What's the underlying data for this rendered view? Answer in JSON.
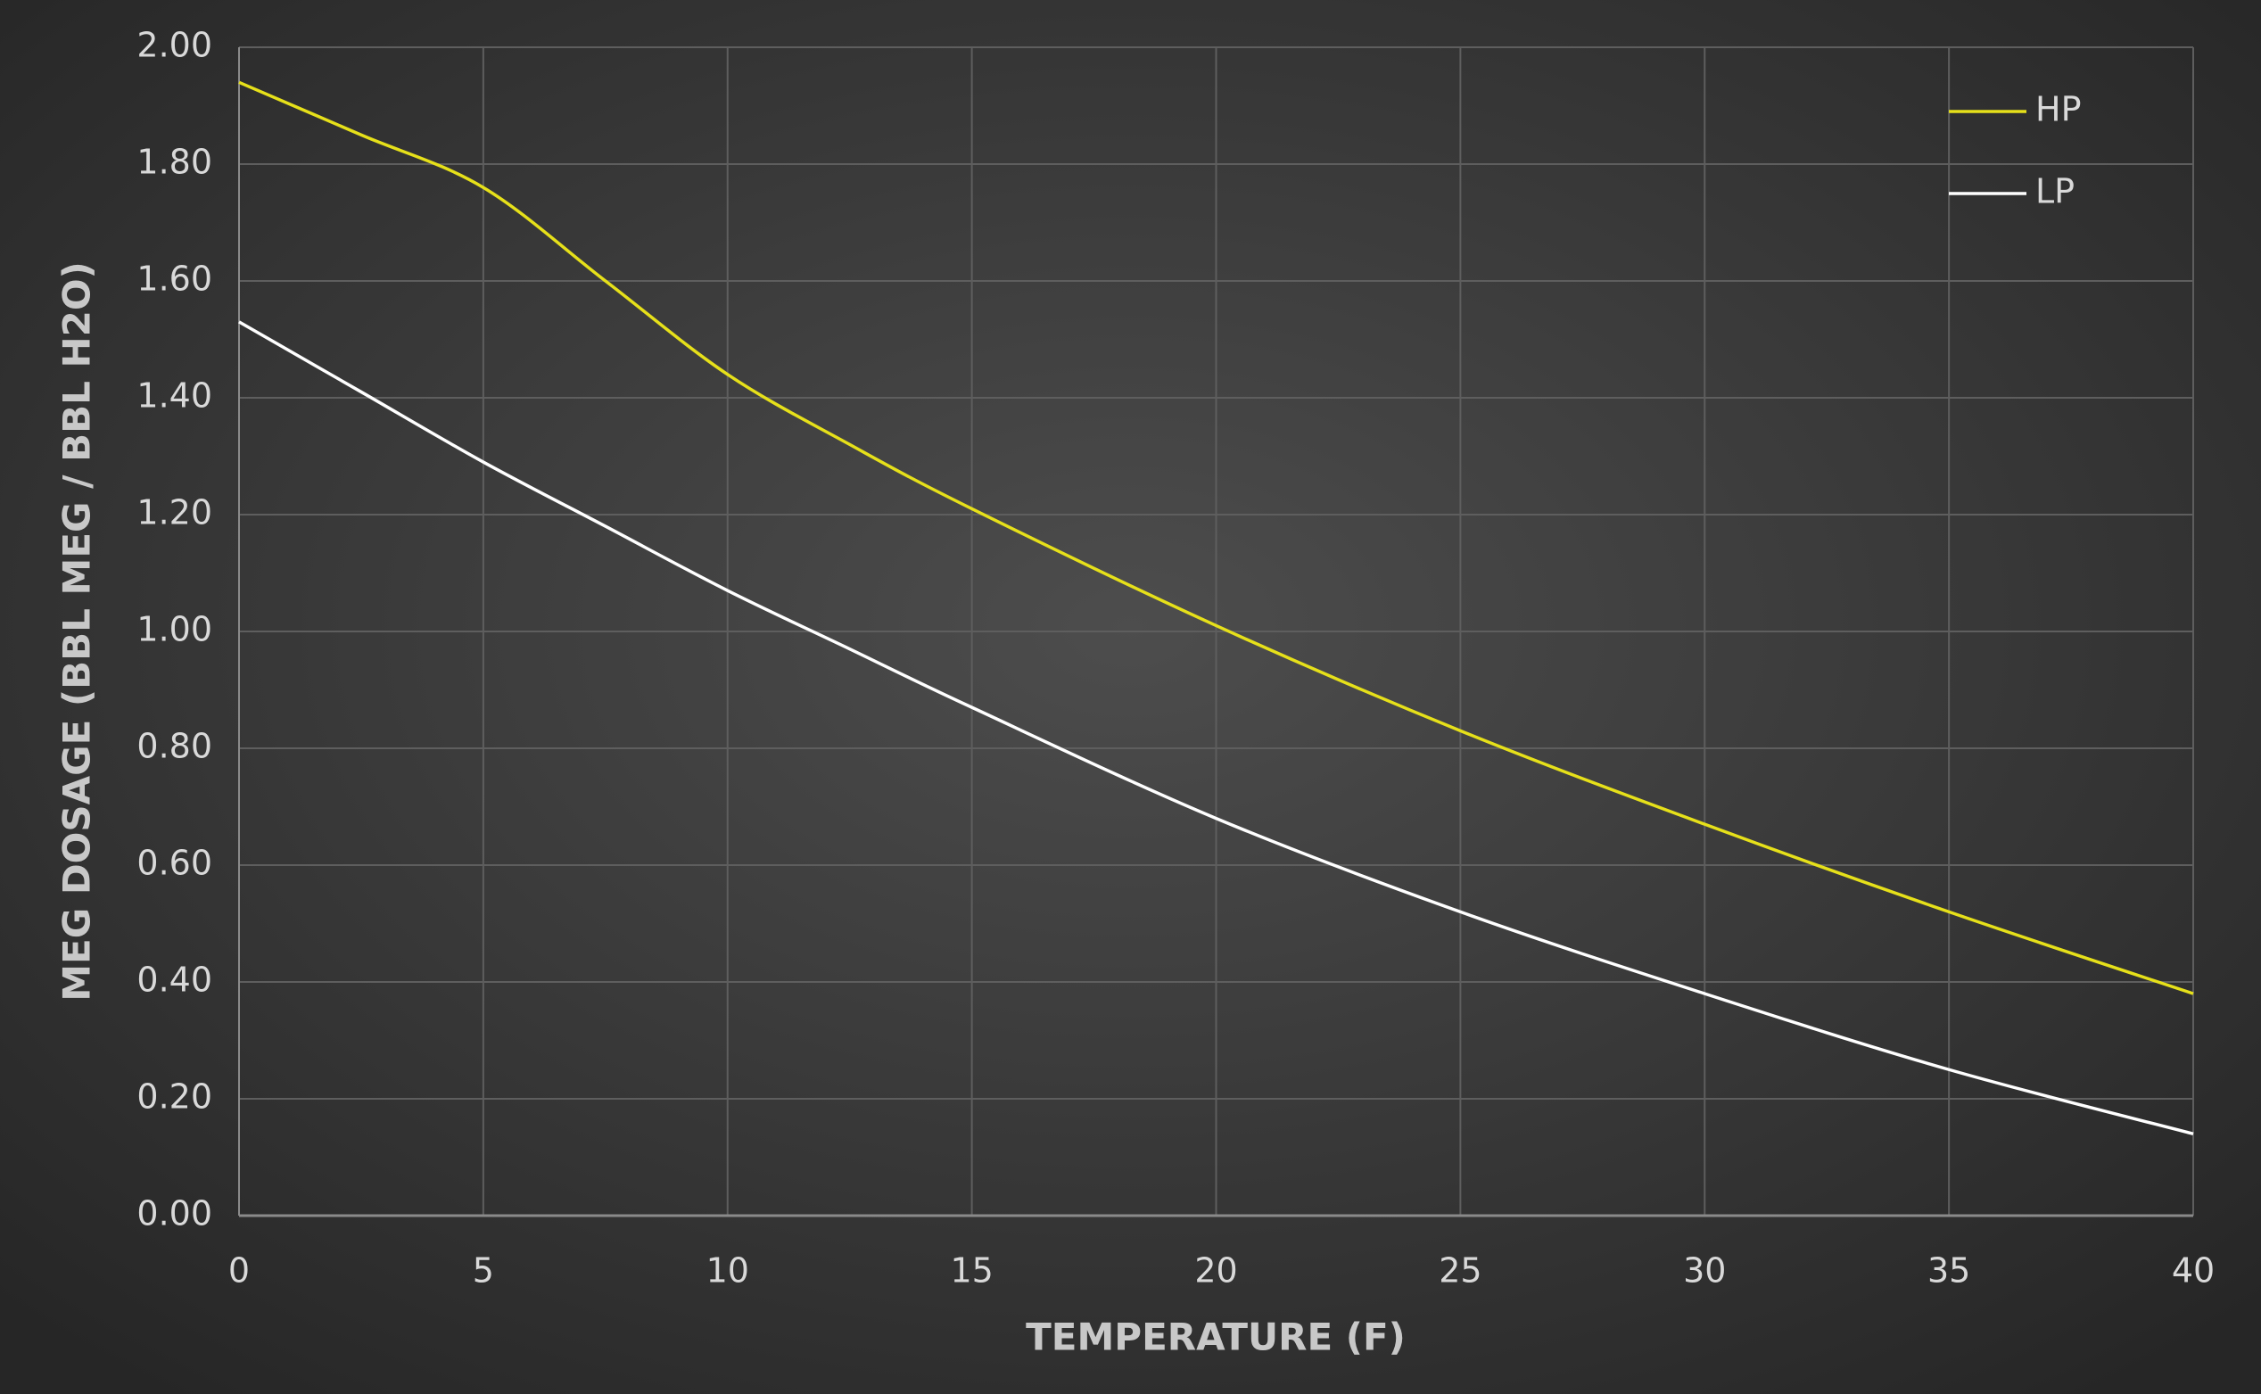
{
  "chart_data": {
    "type": "line",
    "x_label": "TEMPERATURE (F)",
    "y_label": "MEG DOSAGE (BBL MEG / BBL H2O)",
    "x": [
      0,
      2.5,
      5,
      7.5,
      10,
      12.5,
      15,
      20,
      25,
      30,
      35,
      40
    ],
    "series": [
      {
        "name": "HP",
        "color": "#e6e01a",
        "values": [
          1.94,
          1.85,
          1.76,
          1.6,
          1.44,
          1.32,
          1.21,
          1.01,
          0.83,
          0.67,
          0.52,
          0.38
        ]
      },
      {
        "name": "LP",
        "color": "#ffffff",
        "values": [
          1.53,
          1.41,
          1.29,
          1.18,
          1.07,
          0.97,
          0.87,
          0.68,
          0.52,
          0.38,
          0.25,
          0.14
        ]
      }
    ],
    "xlim": [
      0,
      40
    ],
    "xticks": [
      0,
      5,
      10,
      15,
      20,
      25,
      30,
      35,
      40
    ],
    "ylim": [
      0,
      2
    ],
    "yticks": [
      {
        "value": 0,
        "label": "0.00"
      },
      {
        "value": 0.2,
        "label": "0.20"
      },
      {
        "value": 0.4,
        "label": "0.40"
      },
      {
        "value": 0.6,
        "label": "0.60"
      },
      {
        "value": 0.8,
        "label": "0.80"
      },
      {
        "value": 1,
        "label": "1.00"
      },
      {
        "value": 1.2,
        "label": "1.20"
      },
      {
        "value": 1.4,
        "label": "1.40"
      },
      {
        "value": 1.6,
        "label": "1.60"
      },
      {
        "value": 1.8,
        "label": "1.80"
      },
      {
        "value": 2,
        "label": "2.00"
      }
    ],
    "grid": true,
    "legend": "top-right"
  }
}
